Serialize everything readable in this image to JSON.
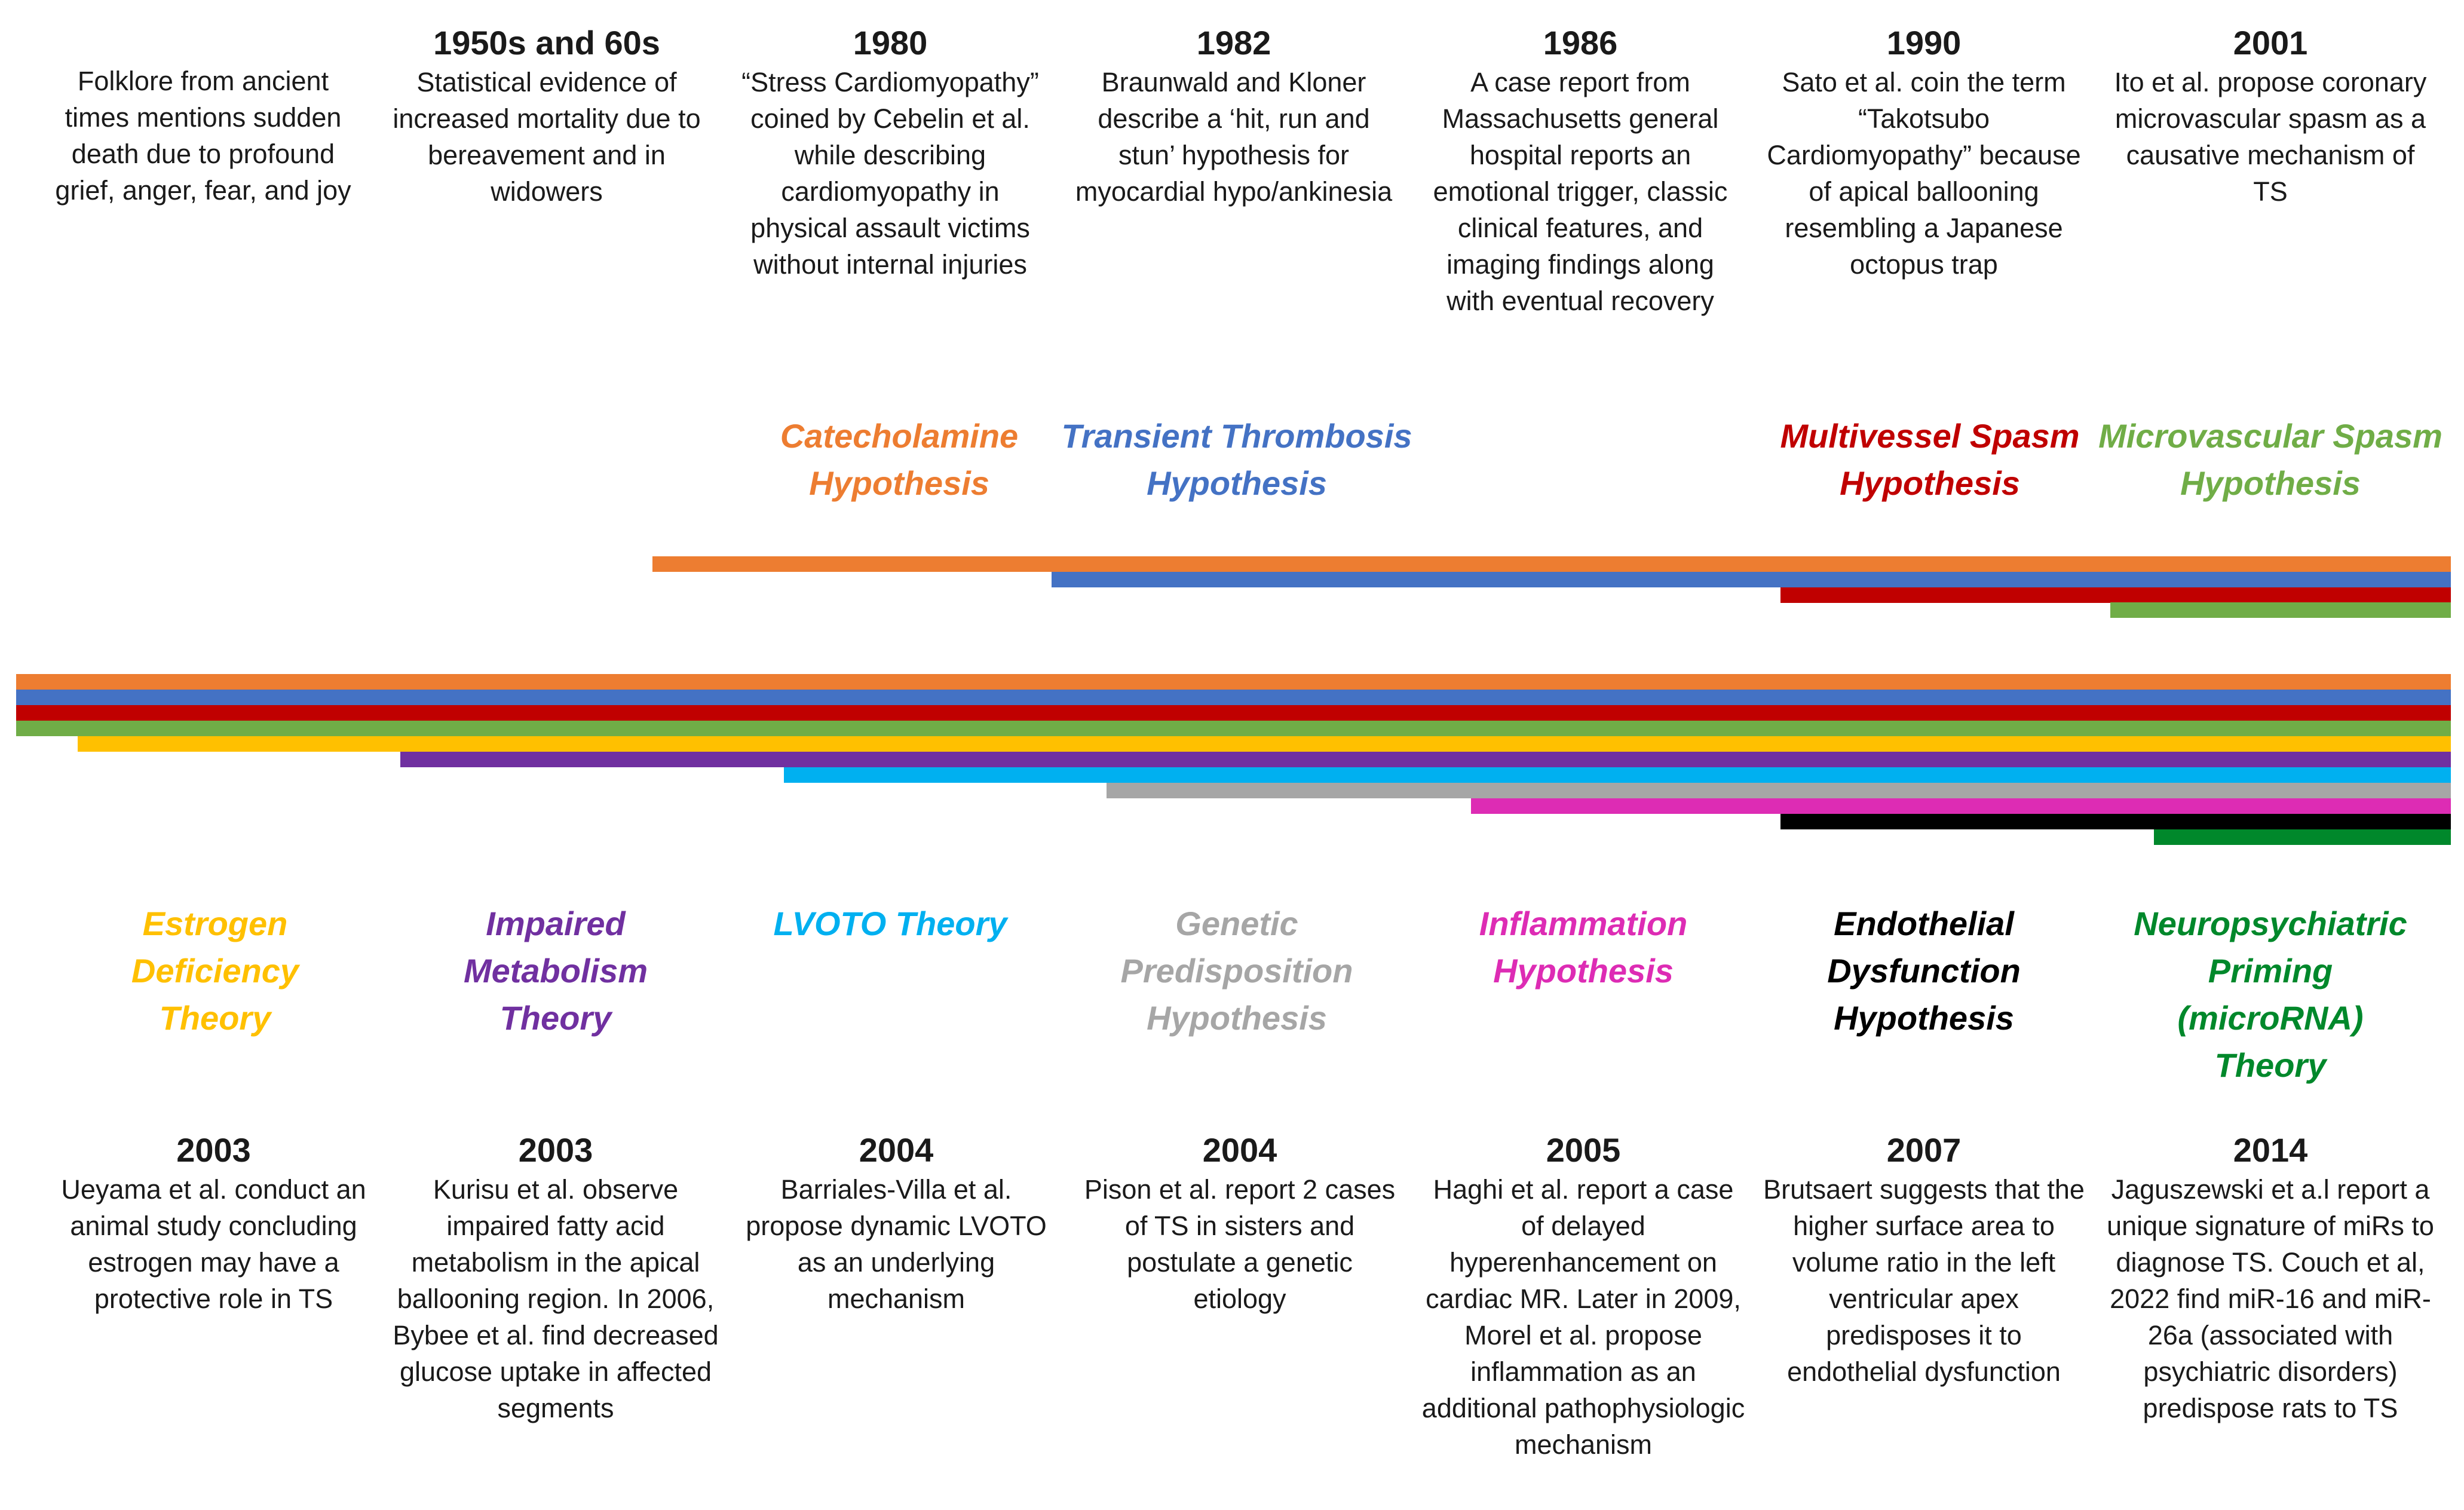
{
  "top_events": [
    {
      "year": "",
      "text": "Folklore from ancient times mentions sudden death due to profound grief, anger, fear, and joy"
    },
    {
      "year": "1950s and 60s",
      "text": "Statistical evidence of increased mortality due to bereavement and in widowers"
    },
    {
      "year": "1980",
      "text": "“Stress Cardiomyopathy” coined by Cebelin et al. while describing cardiomyopathy in physical assault victims without internal injuries"
    },
    {
      "year": "1982",
      "text": "Braunwald and Kloner describe a ‘hit, run and stun’ hypothesis for myocardial hypo/ankinesia"
    },
    {
      "year": "1986",
      "text": "A case report from Massachusetts general hospital reports an emotional trigger, classic clinical features, and imaging findings along with eventual recovery"
    },
    {
      "year": "1990",
      "text": "Sato et al. coin the term “Takotsubo Cardiomyopathy” because of apical ballooning resembling a Japanese octopus trap"
    },
    {
      "year": "2001",
      "text": "Ito et al. propose coronary microvascular spasm as a causative mechanism of TS"
    }
  ],
  "top_theories": [
    {
      "name": "Catecholamine Hypothesis",
      "color": "#ED7D31"
    },
    {
      "name": "Transient Thrombosis Hypothesis",
      "color": "#4472C4"
    },
    {
      "name": "Multivessel Spasm Hypothesis",
      "color": "#C00000"
    },
    {
      "name": "Microvascular Spasm Hypothesis",
      "color": "#70AD47"
    }
  ],
  "bottom_theories": [
    {
      "name": "Estrogen Deficiency Theory",
      "color": "#FFC000"
    },
    {
      "name": "Impaired Metabolism Theory",
      "color": "#7030A0"
    },
    {
      "name": "LVOTO Theory",
      "color": "#00B0F0"
    },
    {
      "name": "Genetic Predisposition Hypothesis",
      "color": "#A6A6A6"
    },
    {
      "name": "Inflammation Hypothesis",
      "color": "#DD2CB4"
    },
    {
      "name": "Endothelial Dysfunction Hypothesis",
      "color": "#000000"
    },
    {
      "name": "Neuropsychiatric Priming (microRNA) Theory",
      "color": "#00882B"
    }
  ],
  "bottom_events": [
    {
      "year": "2003",
      "text": "Ueyama et al. conduct an animal study concluding estrogen may have a protective role in TS"
    },
    {
      "year": "2003",
      "text": "Kurisu et al. observe impaired fatty acid metabolism in the apical ballooning region. In 2006, Bybee et al. find decreased glucose uptake in affected segments"
    },
    {
      "year": "2004",
      "text": "Barriales-Villa et al. propose dynamic LVOTO as an underlying mechanism"
    },
    {
      "year": "2004",
      "text": "Pison et al. report 2 cases of TS in sisters and postulate a genetic etiology"
    },
    {
      "year": "2005",
      "text": "Haghi et al. report a case of delayed hyperenhancement on cardiac MR. Later in 2009, Morel et al. propose inflammation as an additional pathophysiologic mechanism"
    },
    {
      "year": "2007",
      "text": "Brutsaert suggests that the higher surface area to volume ratio in the left ventricular apex predisposes it to endothelial dysfunction"
    },
    {
      "year": "2014",
      "text": "Jaguszewski et a.l report a unique signature of miRs to diagnose TS. Couch et al, 2022 find miR-16 and miR-26a (associated with psychiatric disorders) predispose rats to TS"
    }
  ]
}
